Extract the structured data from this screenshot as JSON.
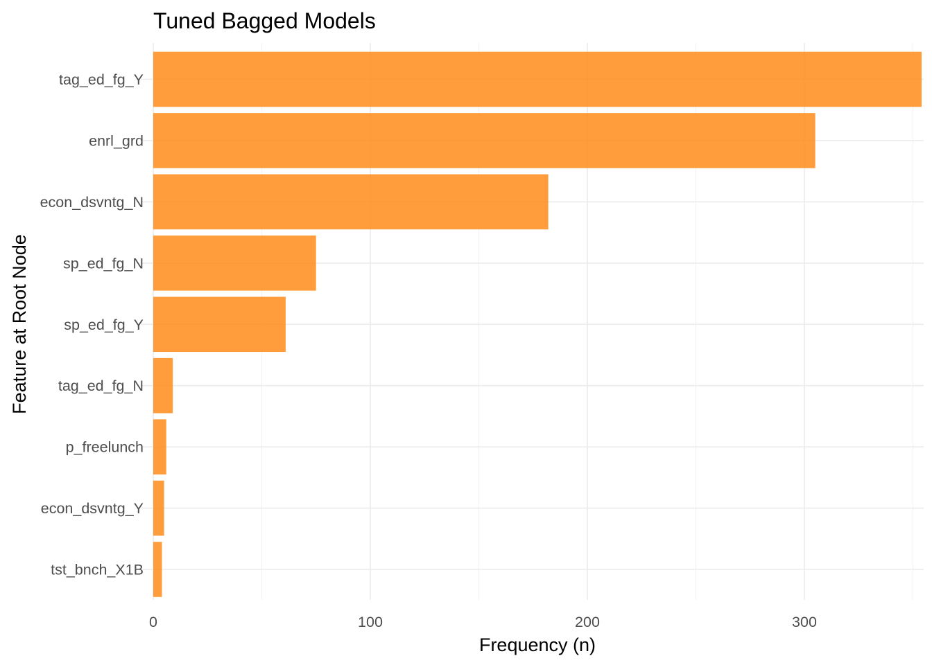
{
  "chart_data": {
    "type": "bar",
    "orientation": "horizontal",
    "title": "Tuned Bagged Models",
    "xlabel": "Frequency (n)",
    "ylabel": "Feature at Root Node",
    "categories": [
      "tag_ed_fg_Y",
      "enrl_grd",
      "econ_dsvntg_N",
      "sp_ed_fg_N",
      "sp_ed_fg_Y",
      "tag_ed_fg_N",
      "p_freelunch",
      "econ_dsvntg_Y",
      "tst_bnch_X1B"
    ],
    "values": [
      354,
      305,
      182,
      75,
      61,
      9,
      6,
      5,
      4
    ],
    "xlim": [
      0,
      354
    ],
    "x_ticks": [
      0,
      100,
      200,
      300
    ],
    "x_tick_labels": [
      "0",
      "100",
      "200",
      "300"
    ],
    "bar_color": "#ff8c1a",
    "grid": true,
    "legend": "none"
  }
}
